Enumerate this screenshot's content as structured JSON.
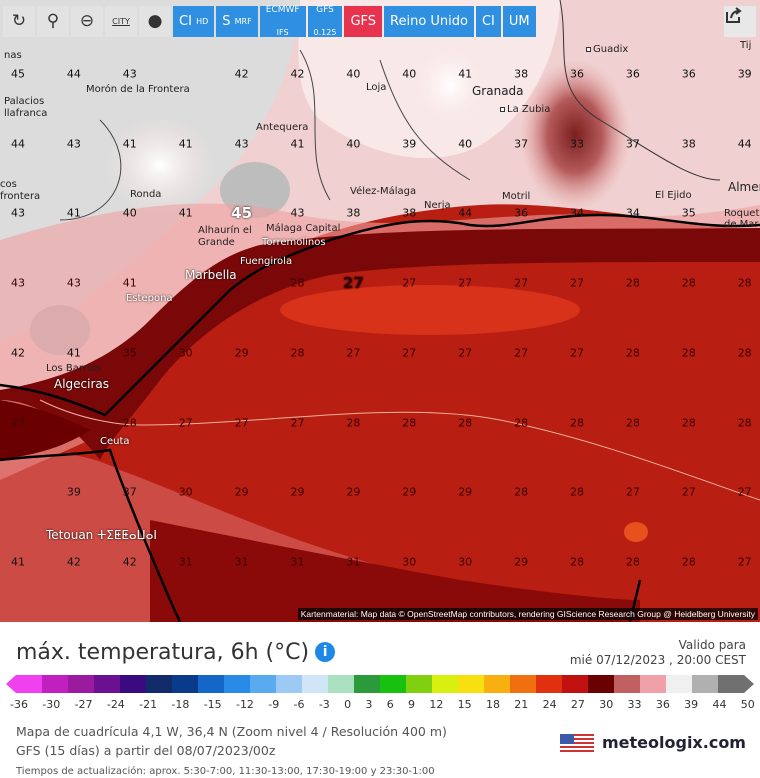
{
  "toolbar": {
    "buttons": [
      {
        "icon": "refresh-icon"
      },
      {
        "icon": "map-pin-icon"
      },
      {
        "icon": "zoom-out-icon"
      },
      {
        "label": "CITY"
      },
      {
        "icon": "point-icon"
      },
      {
        "label": "CI",
        "sub": "HD"
      },
      {
        "label": "S",
        "sub": "MRF"
      },
      {
        "label": "ECMWF",
        "sub": "IFS"
      },
      {
        "label": "GFS",
        "sub": "0.125"
      },
      {
        "label": "GFS"
      },
      {
        "label": "Reino Unido"
      },
      {
        "label": "CI"
      },
      {
        "label": "UM"
      }
    ],
    "share_icon": "share-icon"
  },
  "map": {
    "rows": [
      [
        "45",
        "44",
        "43",
        "42",
        "42",
        "40",
        "40",
        "41",
        "38",
        "36",
        "36",
        "36",
        "39"
      ],
      [
        "44",
        "43",
        "41",
        "41",
        "43",
        "41",
        "40",
        "39",
        "40",
        "37",
        "33",
        "37",
        "38",
        "44"
      ],
      [
        "43",
        "41",
        "40",
        "41",
        "45",
        "43",
        "38",
        "38",
        "44",
        "36",
        "34",
        "34",
        "35",
        ""
      ],
      [
        "43",
        "43",
        "41",
        "",
        "",
        "28",
        "27",
        "27",
        "27",
        "27",
        "27",
        "28",
        "28",
        "28"
      ],
      [
        "42",
        "41",
        "35",
        "30",
        "29",
        "28",
        "27",
        "27",
        "27",
        "27",
        "27",
        "28",
        "28",
        "28"
      ],
      [
        "27",
        "",
        "28",
        "27",
        "27",
        "27",
        "28",
        "28",
        "28",
        "28",
        "28",
        "28",
        "28",
        "28"
      ],
      [
        "",
        "39",
        "37",
        "30",
        "29",
        "29",
        "29",
        "29",
        "29",
        "28",
        "28",
        "27",
        "27",
        "27"
      ],
      [
        "41",
        "42",
        "42",
        "31",
        "31",
        "31",
        "31",
        "30",
        "30",
        "29",
        "28",
        "28",
        "28",
        "27"
      ]
    ],
    "cities": [
      "Guadix",
      "Loja",
      "Granada",
      "La Zubia",
      "Morón de la Frontera",
      "Palacios",
      "llafranca",
      "Antequera",
      "Vélez-Málaga",
      "Nerja",
      "Motril",
      "El Ejido",
      "Almería",
      "Roquetas de Mar",
      "Ronda",
      "Alhaurín el Grande",
      "Málaga Capital",
      "Torremolinos",
      "Fuengirola",
      "Marbella",
      "Estepona",
      "Los Barrios",
      "Algeciras",
      "Ceuta",
      "Tetouan ⵜⵉⵟⵟⴰⵡⴰⵏ",
      "cos frontera",
      "nas",
      "Tij"
    ],
    "attribution": "Kartenmaterial: Map data © OpenStreetMap contributors, rendering GIScience Research Group @ Heidelberg University"
  },
  "legend": {
    "title": "máx. temperatura, 6h (°C)",
    "info_icon": "info-icon",
    "valid_label": "Valido para",
    "valid_time": "mié 07/12/2023 , 20:00 CEST",
    "ticks": [
      "-36",
      "-30",
      "-27",
      "-24",
      "-21",
      "-18",
      "-15",
      "-12",
      "-9",
      "-6",
      "-3",
      "0",
      "3",
      "6",
      "9",
      "12",
      "15",
      "18",
      "21",
      "24",
      "27",
      "30",
      "33",
      "36",
      "39",
      "44",
      "50"
    ],
    "colors": [
      "#f040f0",
      "#c020c0",
      "#9a1aa0",
      "#6a1090",
      "#3a0a80",
      "#102a6a",
      "#0a3a8a",
      "#1466c8",
      "#2a8ae8",
      "#5aaaf0",
      "#9ccaf5",
      "#d0e6f8",
      "#a8e0c0",
      "#2a9a3a",
      "#18c010",
      "#80d010",
      "#d8f010",
      "#f8e010",
      "#f8b010",
      "#f07010",
      "#e03010",
      "#c01010",
      "#6a0000",
      "#c06060",
      "#f0a0a8",
      "#f0f0f0",
      "#b0b0b0",
      "#707070"
    ],
    "meta1": "Mapa de cuadrícula 4,1 W, 36,4 N  (Zoom nivel 4 / Resolución 400 m)",
    "meta2": "GFS  (15 días)  a partir del 08/07/2023/00z",
    "brand": "meteologix.com",
    "update": "Tiempos de actualización: aprox. 5:30-7:00, 11:30-13:00, 17:30-19:00 y 23:30-1:00"
  }
}
